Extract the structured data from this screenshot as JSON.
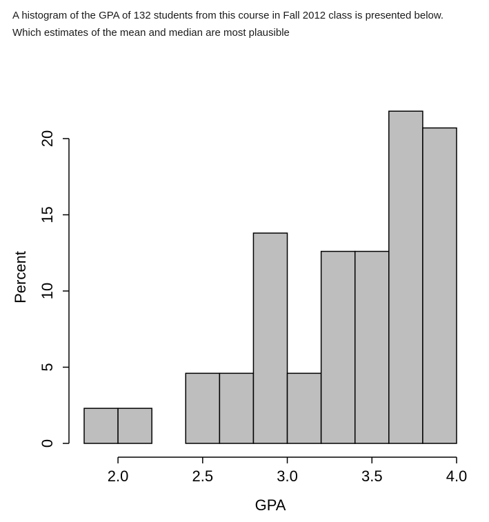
{
  "question": {
    "line1": "A histogram of the GPA of 132 students from this course in Fall 2012 class is presented below.",
    "line2": "Which estimates of the mean and median are most plausible"
  },
  "chart_data": {
    "type": "bar",
    "subtype": "histogram",
    "title": "",
    "xlabel": "GPA",
    "ylabel": "Percent",
    "bin_edges": [
      1.8,
      2.0,
      2.2,
      2.4,
      2.6,
      2.8,
      3.0,
      3.2,
      3.4,
      3.6,
      3.8,
      4.0
    ],
    "values": [
      2.3,
      2.3,
      0,
      4.6,
      4.6,
      13.8,
      4.6,
      12.6,
      12.6,
      21.8,
      20.7
    ],
    "xlim": [
      1.8,
      4.0
    ],
    "ylim": [
      0,
      20
    ],
    "x_ticks": [
      2.0,
      2.5,
      3.0,
      3.5,
      4.0
    ],
    "x_tick_labels": [
      "2.0",
      "2.5",
      "3.0",
      "3.5",
      "4.0"
    ],
    "y_ticks": [
      0,
      5,
      10,
      15,
      20
    ],
    "y_tick_labels": [
      "0",
      "5",
      "10",
      "15",
      "20"
    ],
    "bar_color": "#bebebe",
    "edge_color": "#000000",
    "grid": false,
    "legend": "none"
  }
}
